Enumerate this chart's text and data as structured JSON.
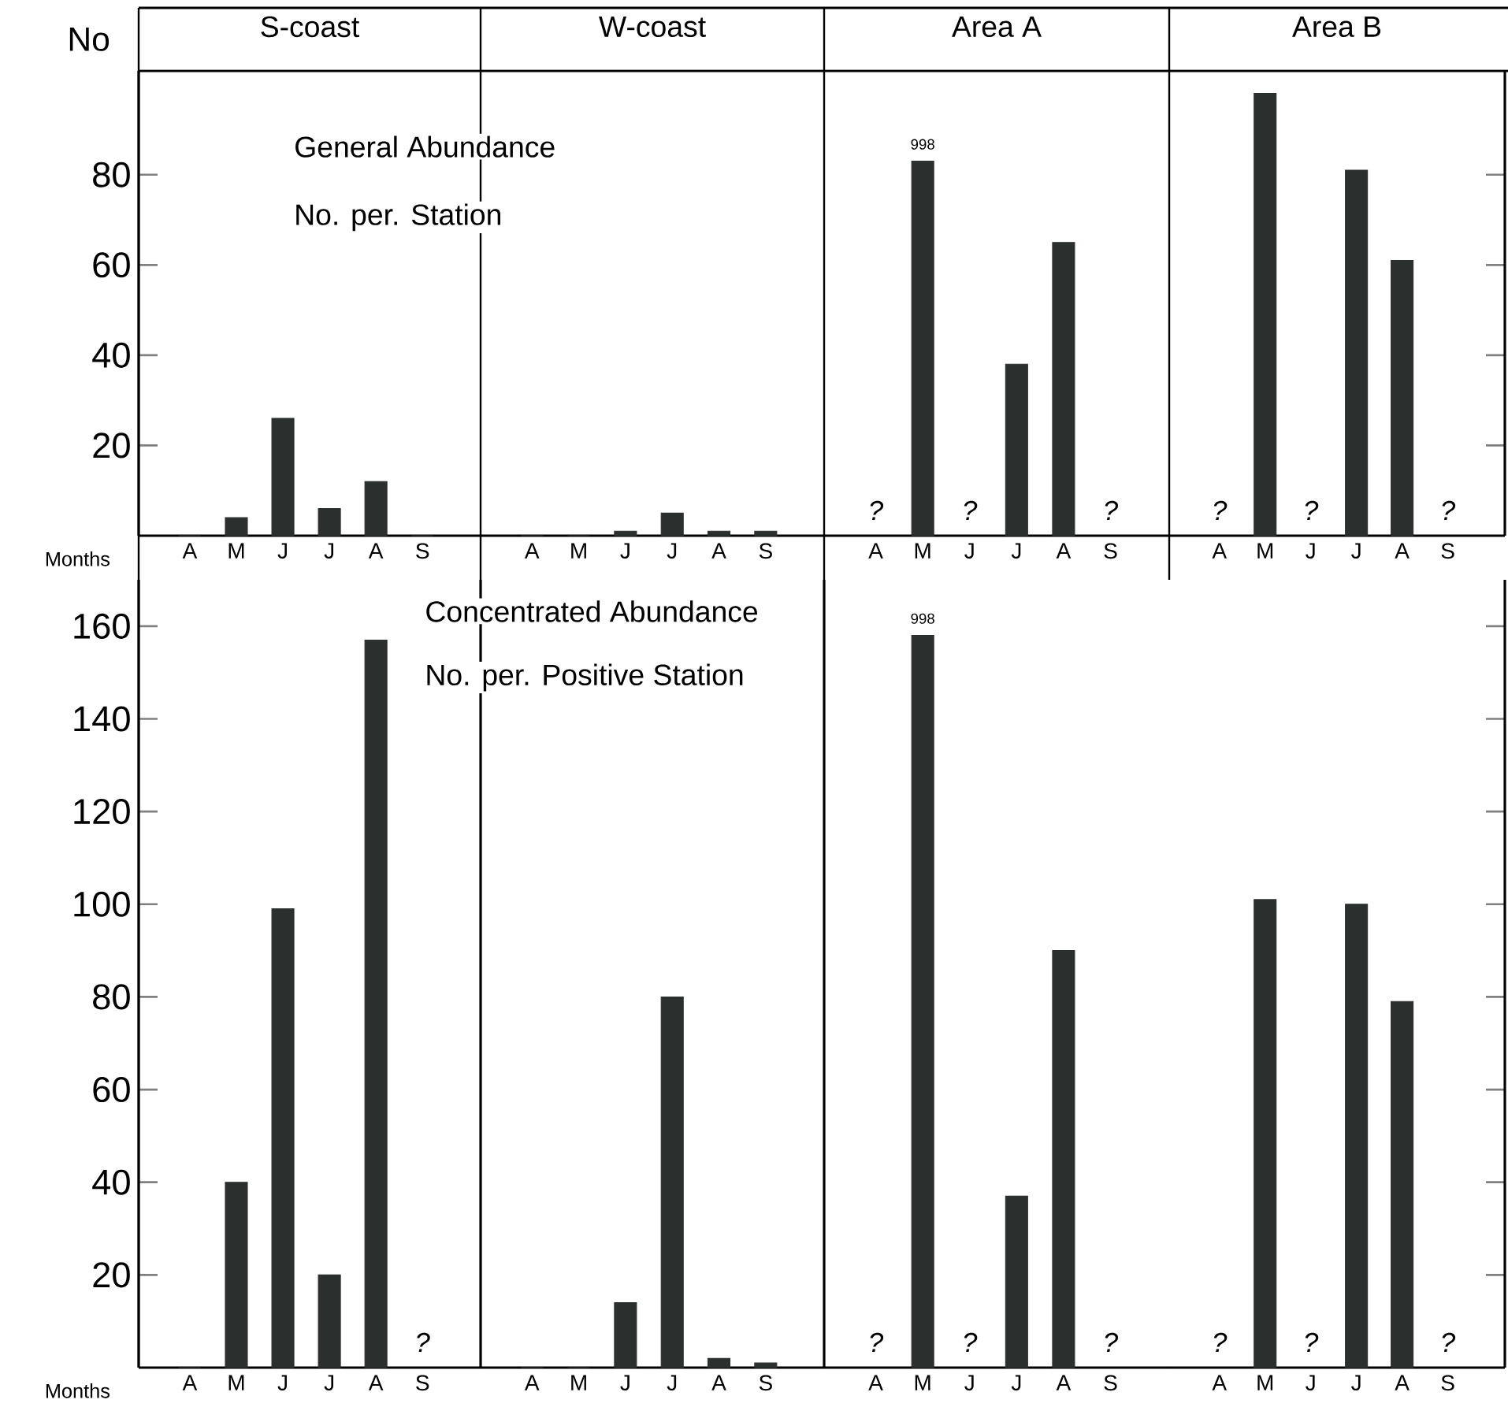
{
  "chart_data": [
    {
      "type": "bar",
      "title": "S-coast",
      "ylabel": "No",
      "xlabel": "Months",
      "categories": [
        "A",
        "M",
        "J",
        "J",
        "A",
        "S"
      ],
      "values": [
        0,
        4,
        26,
        6,
        12,
        0
      ],
      "color": "#2b302e",
      "ylim": [
        0,
        103
      ],
      "yticks": [
        20,
        40,
        60,
        80
      ],
      "annotations": [
        "General Abundance",
        "No. per. Station"
      ]
    },
    {
      "type": "bar",
      "title": "W-coast",
      "categories": [
        "A",
        "M",
        "J",
        "J",
        "A",
        "S"
      ],
      "values": [
        0,
        0,
        1,
        5,
        1,
        1
      ],
      "color": "#2b302e",
      "ylim": [
        0,
        103
      ],
      "tick_labels": "x"
    },
    {
      "type": "bar",
      "title": "Area A",
      "categories": [
        "A",
        "M",
        "J",
        "J",
        "A",
        "S"
      ],
      "values": [
        null,
        83,
        null,
        38,
        65,
        null
      ],
      "value_labels": [
        "?",
        null,
        "?",
        null,
        null,
        "?"
      ],
      "color": "#2b302e",
      "ylim": [
        0,
        103
      ],
      "tick_labels": "x",
      "annotations": [
        {
          "text": "998",
          "x": "M",
          "y": 83
        }
      ]
    },
    {
      "type": "bar",
      "title": "Area B",
      "categories": [
        "A",
        "M",
        "J",
        "J",
        "A",
        "S"
      ],
      "values": [
        null,
        98,
        null,
        81,
        61,
        null
      ],
      "value_labels": [
        "?",
        null,
        "?",
        null,
        null,
        "?"
      ],
      "color": "#2b302e",
      "ylim": [
        0,
        103
      ],
      "yticks": [
        {
          "value": 20,
          "label": null
        },
        {
          "value": 40,
          "label": null
        },
        {
          "value": 60,
          "label": null
        },
        {
          "value": 80,
          "label": null
        }
      ],
      "tick_labels": "x"
    },
    {
      "type": "bar",
      "xlabel": "Months",
      "categories": [
        "A",
        "M",
        "J",
        "J",
        "A",
        "S"
      ],
      "values": [
        0,
        40,
        99,
        20,
        157,
        null
      ],
      "value_labels": [
        null,
        null,
        null,
        null,
        null,
        "?"
      ],
      "color": "#2b302e",
      "ylim": [
        0,
        170
      ],
      "yticks": [
        20,
        40,
        60,
        80,
        100,
        120,
        140,
        160
      ],
      "annotations": [
        "Concentrated Abundance",
        "No. per. Positive Station"
      ]
    },
    {
      "type": "bar",
      "categories": [
        "A",
        "M",
        "J",
        "J",
        "A",
        "S"
      ],
      "values": [
        0,
        0,
        14,
        80,
        2,
        1
      ],
      "color": "#2b302e",
      "ylim": [
        0,
        170
      ],
      "tick_labels": "x"
    },
    {
      "type": "bar",
      "categories": [
        "A",
        "M",
        "J",
        "J",
        "A",
        "S"
      ],
      "values": [
        null,
        158,
        null,
        37,
        90,
        null
      ],
      "value_labels": [
        "?",
        null,
        "?",
        null,
        null,
        "?"
      ],
      "color": "#2b302e",
      "ylim": [
        0,
        170
      ],
      "tick_labels": "x",
      "annotations": [
        {
          "text": "998",
          "x": "M",
          "y": 158
        }
      ]
    },
    {
      "type": "bar",
      "categories": [
        "A",
        "M",
        "J",
        "J",
        "A",
        "S"
      ],
      "values": [
        null,
        101,
        null,
        100,
        79,
        null
      ],
      "value_labels": [
        "?",
        null,
        "?",
        null,
        null,
        "?"
      ],
      "color": "#2b302e",
      "ylim": [
        0,
        170
      ],
      "yticks": [
        {
          "value": 20,
          "label": null
        },
        {
          "value": 40,
          "label": null
        },
        {
          "value": 60,
          "label": null
        },
        {
          "value": 80,
          "label": null
        },
        {
          "value": 100,
          "label": null
        },
        {
          "value": 120,
          "label": null
        },
        {
          "value": 140,
          "label": null
        },
        {
          "value": 160,
          "label": null
        }
      ],
      "tick_labels": "x"
    }
  ]
}
